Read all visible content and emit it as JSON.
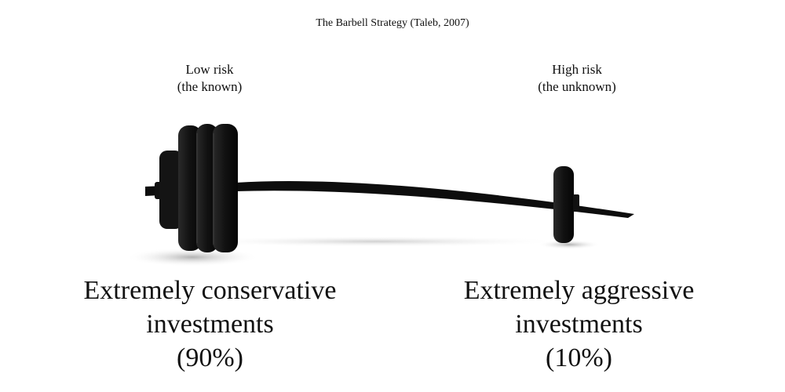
{
  "title": "The Barbell Strategy (Taleb, 2007)",
  "left": {
    "risk_line1": "Low risk",
    "risk_line2": "(the known)",
    "alloc_line1": "Extremely conservative",
    "alloc_line2": "investments",
    "alloc_pct": "(90%)",
    "share": 0.9
  },
  "right": {
    "risk_line1": "High risk",
    "risk_line2": "(the unknown)",
    "alloc_line1": "Extremely aggressive",
    "alloc_line2": "investments",
    "alloc_pct": "(10%)",
    "share": 0.1
  },
  "colors": {
    "weight": "#111111",
    "bar": "#0d0d0d",
    "shadow": "#bdbdbd"
  }
}
